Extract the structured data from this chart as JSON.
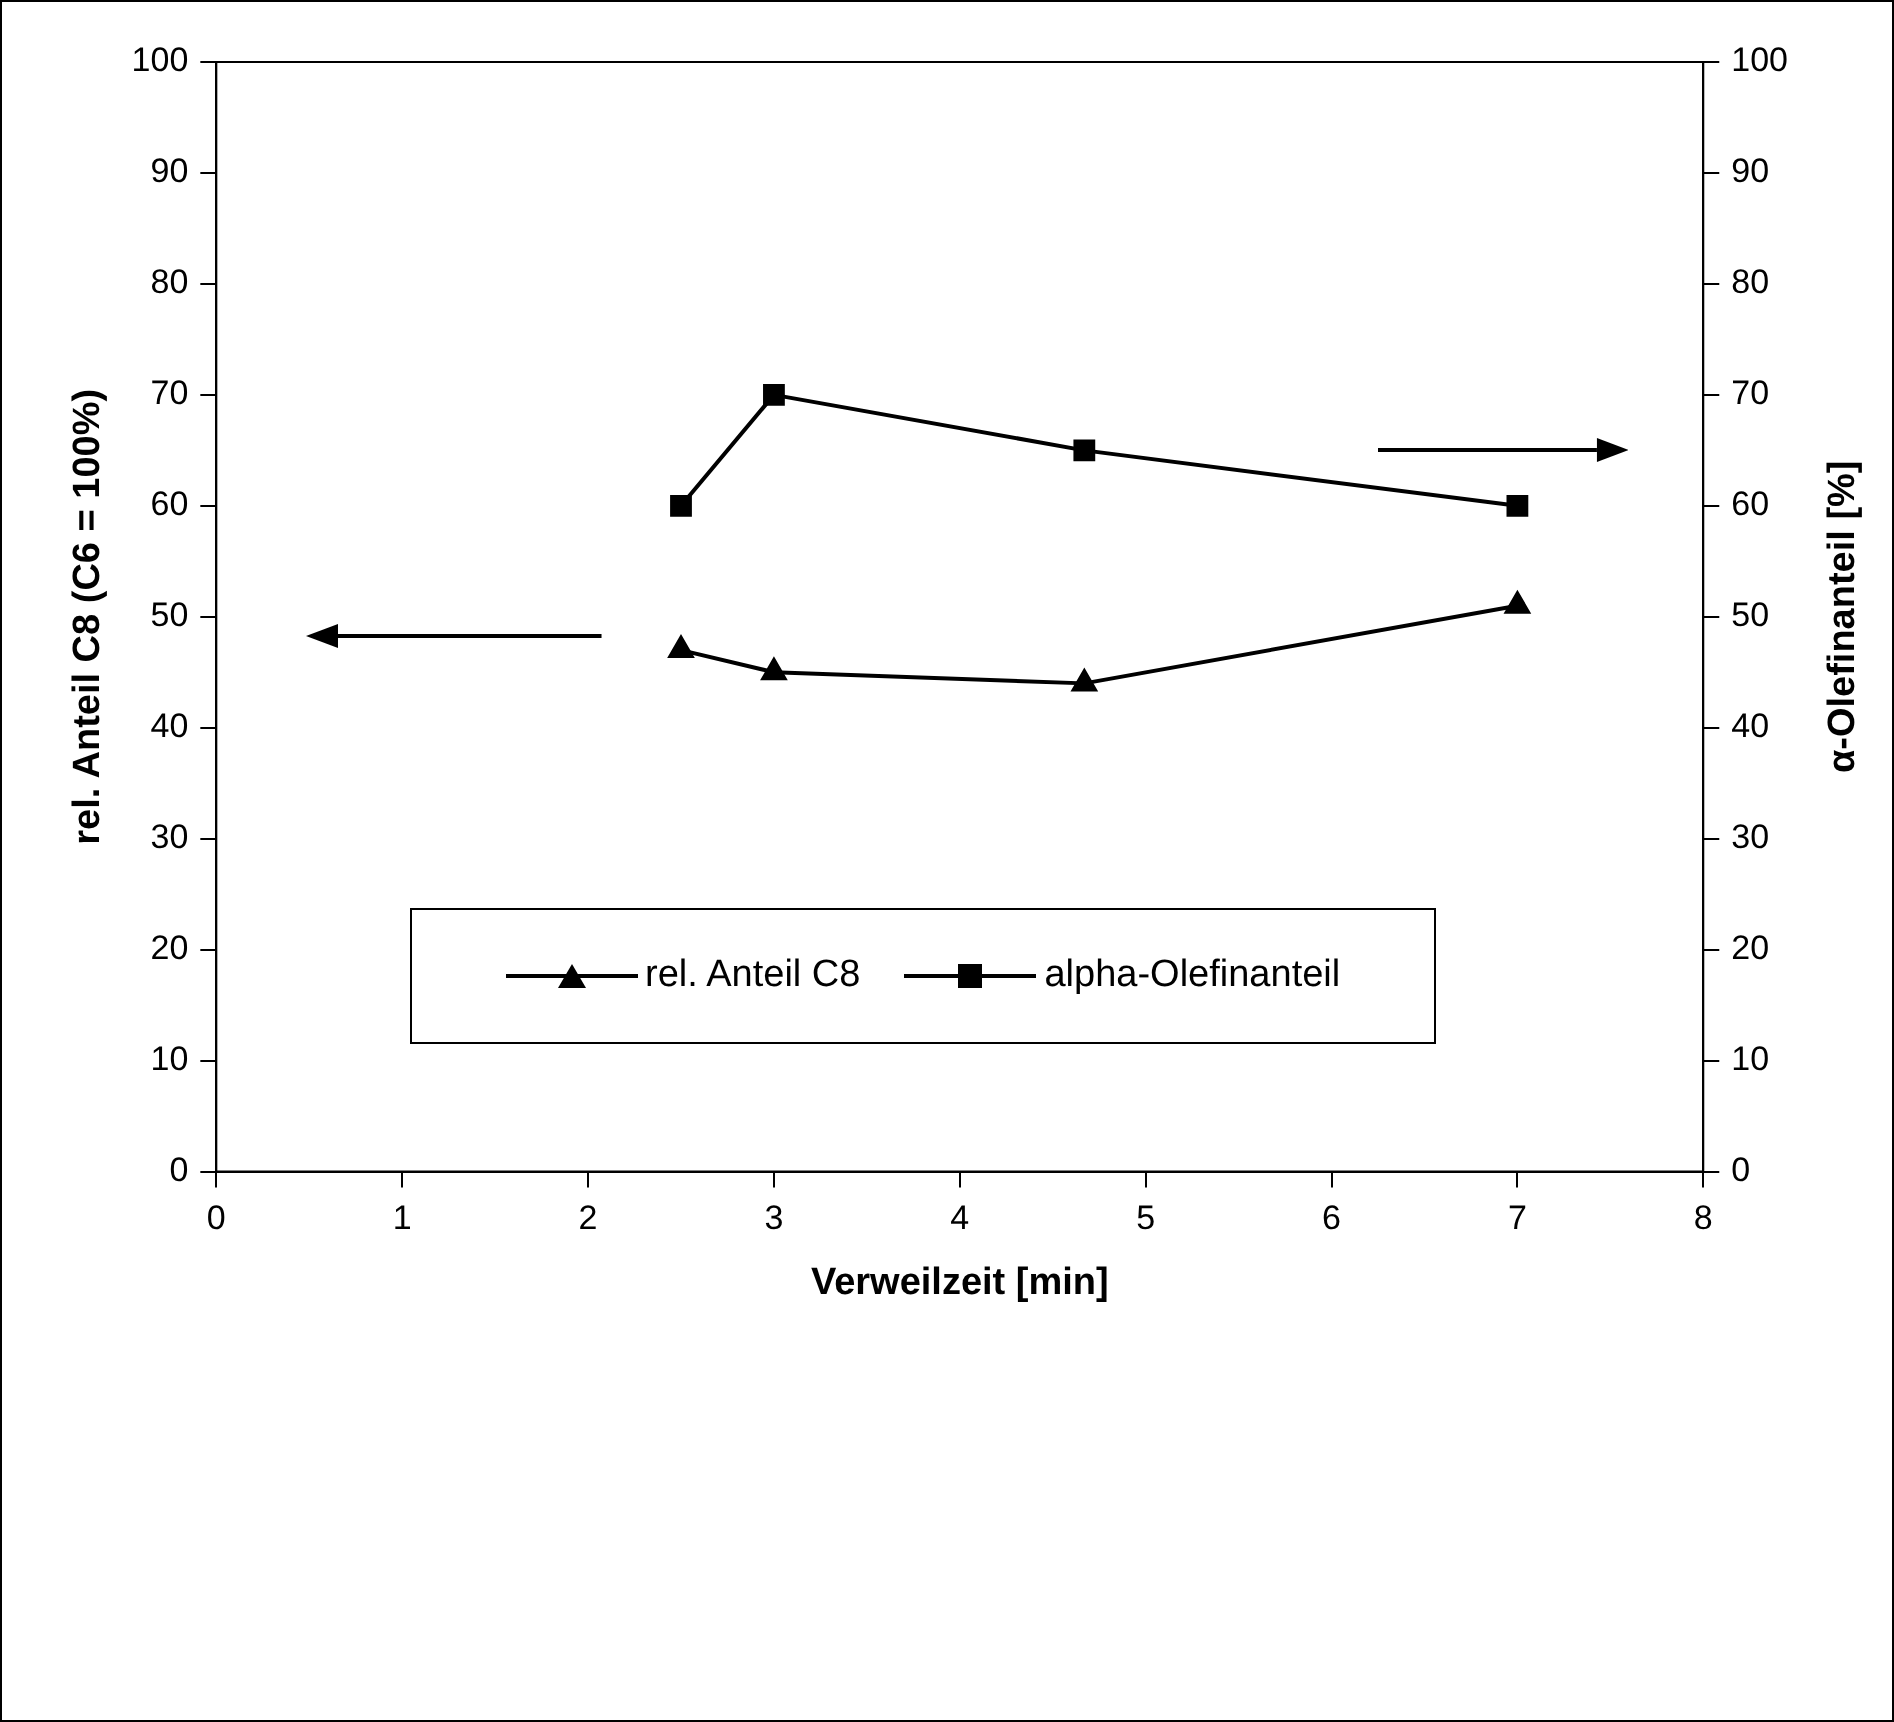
{
  "chart_data": {
    "type": "line",
    "xlabel": "Verweilzeit [min]",
    "ylabel": "rel. Anteil C8 (C6 = 100%)",
    "y2label": "α-Olefinanteil [%]",
    "x": [
      2.5,
      3,
      4.67,
      7
    ],
    "series": [
      {
        "name": "rel. Anteil C8",
        "color": "#000000",
        "values": [
          47,
          45,
          44,
          51
        ],
        "marker": "triangle"
      },
      {
        "name": "alpha-Olefinanteil",
        "color": "#000000",
        "values": [
          60,
          70,
          65,
          60
        ],
        "marker": "square",
        "axis": "y2"
      }
    ],
    "xlim": [
      0,
      8
    ],
    "xticks": [
      0,
      1,
      2,
      3,
      4,
      5,
      6,
      7,
      8
    ],
    "ylim": [
      0,
      100
    ],
    "yticks": [
      0,
      10,
      20,
      30,
      40,
      50,
      60,
      70,
      80,
      90,
      100
    ],
    "y2lim": [
      0,
      100
    ],
    "y2ticks": [
      0,
      10,
      20,
      30,
      40,
      50,
      60,
      70,
      80,
      90,
      100
    ],
    "grid": false,
    "legend": "bottom",
    "line_style": "solid"
  }
}
